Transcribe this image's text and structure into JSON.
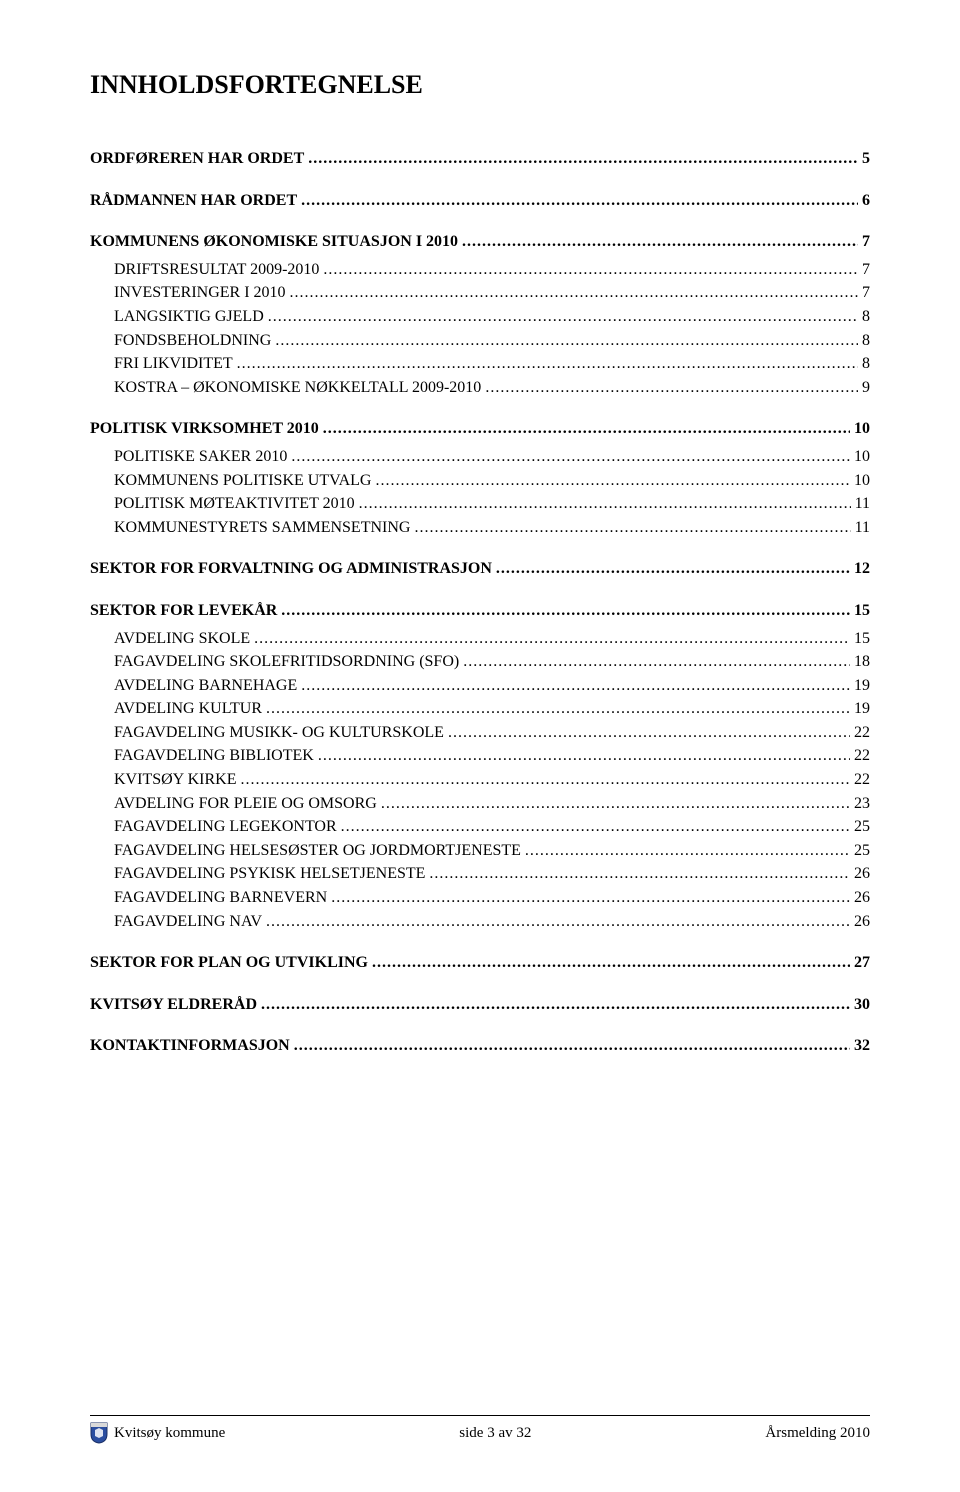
{
  "title": "INNHOLDSFORTEGNELSE",
  "toc": [
    {
      "label": "ORDFØREREN HAR ORDET",
      "page": "5",
      "classes": "bold",
      "spaceBefore": ""
    },
    {
      "label": "RÅDMANNEN HAR ORDET",
      "page": "6",
      "classes": "bold",
      "spaceBefore": "lg"
    },
    {
      "label": "KOMMUNENS ØKONOMISKE SITUASJON I 2010",
      "page": "7",
      "classes": "bold",
      "spaceBefore": "lg"
    },
    {
      "label": "DRIFTSRESULTAT 2009-2010",
      "page": "7",
      "classes": "indent-1 sc",
      "spaceBefore": "sm"
    },
    {
      "label": "INVESTERINGER I 2010",
      "page": "7",
      "classes": "indent-1 sc",
      "spaceBefore": ""
    },
    {
      "label": "LANGSIKTIG GJELD",
      "page": "8",
      "classes": "indent-1 sc",
      "spaceBefore": ""
    },
    {
      "label": "FONDSBEHOLDNING",
      "page": "8",
      "classes": "indent-1 sc",
      "spaceBefore": ""
    },
    {
      "label": "FRI LIKVIDITET",
      "page": "8",
      "classes": "indent-1 sc",
      "spaceBefore": ""
    },
    {
      "label": "KOSTRA – ØKONOMISKE NØKKELTALL 2009-2010",
      "page": "9",
      "classes": "indent-1 sc",
      "spaceBefore": ""
    },
    {
      "label": "POLITISK VIRKSOMHET 2010",
      "page": "10",
      "classes": "bold",
      "spaceBefore": "lg"
    },
    {
      "label": "POLITISKE SAKER 2010",
      "page": "10",
      "classes": "indent-1 sc",
      "spaceBefore": "sm"
    },
    {
      "label": "KOMMUNENS POLITISKE UTVALG",
      "page": "10",
      "classes": "indent-1 sc",
      "spaceBefore": ""
    },
    {
      "label": "POLITISK MØTEAKTIVITET 2010",
      "page": "11",
      "classes": "indent-1 sc",
      "spaceBefore": ""
    },
    {
      "label": "KOMMUNESTYRETS SAMMENSETNING",
      "page": "11",
      "classes": "indent-1 sc",
      "spaceBefore": ""
    },
    {
      "label": "SEKTOR FOR FORVALTNING OG ADMINISTRASJON",
      "page": "12",
      "classes": "bold",
      "spaceBefore": "lg"
    },
    {
      "label": "SEKTOR FOR LEVEKÅR",
      "page": "15",
      "classes": "bold",
      "spaceBefore": "lg"
    },
    {
      "label": "AVDELING SKOLE",
      "page": "15",
      "classes": "indent-1",
      "spaceBefore": "sm"
    },
    {
      "label": "FAGAVDELING SKOLEFRITIDSORDNING (SFO)",
      "page": "18",
      "classes": "indent-1",
      "spaceBefore": ""
    },
    {
      "label": "AVDELING BARNEHAGE",
      "page": "19",
      "classes": "indent-1",
      "spaceBefore": ""
    },
    {
      "label": "AVDELING KULTUR",
      "page": "19",
      "classes": "indent-1",
      "spaceBefore": ""
    },
    {
      "label": "FAGAVDELING MUSIKK- OG KULTURSKOLE",
      "page": "22",
      "classes": "indent-1",
      "spaceBefore": ""
    },
    {
      "label": "FAGAVDELING BIBLIOTEK",
      "page": "22",
      "classes": "indent-1",
      "spaceBefore": ""
    },
    {
      "label": "KVITSØY KIRKE",
      "page": "22",
      "classes": "indent-1",
      "spaceBefore": ""
    },
    {
      "label": "AVDELING FOR PLEIE OG OMSORG",
      "page": "23",
      "classes": "indent-1",
      "spaceBefore": ""
    },
    {
      "label": "FAGAVDELING LEGEKONTOR",
      "page": "25",
      "classes": "indent-1",
      "spaceBefore": ""
    },
    {
      "label": "FAGAVDELING HELSESØSTER OG JORDMORTJENESTE",
      "page": "25",
      "classes": "indent-1",
      "spaceBefore": ""
    },
    {
      "label": "FAGAVDELING PSYKISK HELSETJENESTE",
      "page": "26",
      "classes": "indent-1",
      "spaceBefore": ""
    },
    {
      "label": "FAGAVDELING BARNEVERN",
      "page": "26",
      "classes": "indent-1",
      "spaceBefore": ""
    },
    {
      "label": "FAGAVDELING NAV",
      "page": "26",
      "classes": "indent-1",
      "spaceBefore": ""
    },
    {
      "label": "SEKTOR FOR PLAN OG UTVIKLING",
      "page": "27",
      "classes": "bold",
      "spaceBefore": "lg"
    },
    {
      "label": "KVITSØY ELDRERÅD",
      "page": "30",
      "classes": "bold",
      "spaceBefore": "lg"
    },
    {
      "label": "KONTAKTINFORMASJON",
      "page": "32",
      "classes": "bold",
      "spaceBefore": "lg"
    }
  ],
  "footer": {
    "left": "Kvitsøy kommune",
    "center": "side 3 av 32",
    "right": "Årsmelding 2010",
    "crest_colors": {
      "shield": "#2b4ea0",
      "border": "#1a2f66",
      "top": "#d9d9d9"
    }
  }
}
